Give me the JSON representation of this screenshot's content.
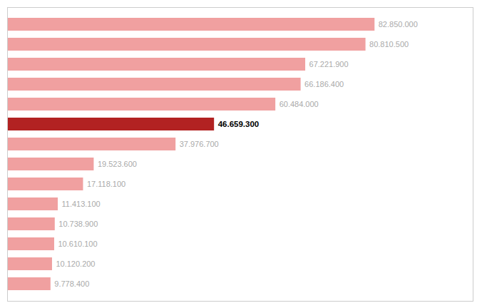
{
  "chart_data": {
    "type": "bar",
    "orientation": "horizontal",
    "categories": [
      null,
      null,
      null,
      null,
      null,
      null,
      null,
      null,
      null,
      null,
      null,
      null,
      null,
      null
    ],
    "values": [
      82850000,
      80810500,
      67221900,
      66186400,
      60484000,
      46659300,
      37976700,
      19523600,
      17118100,
      11413100,
      10738900,
      10610100,
      10120200,
      9778400
    ],
    "value_labels": [
      "82.850.000",
      "80.810.500",
      "67.221.900",
      "66.186.400",
      "60.484.000",
      "46.659.300",
      "37.976.700",
      "19.523.600",
      "17.118.100",
      "11.413.100",
      "10.738.900",
      "10.610.100",
      "10.120.200",
      "9.778.400"
    ],
    "colors": [
      "#f0a0a0",
      "#f0a0a0",
      "#f0a0a0",
      "#f0a0a0",
      "#f0a0a0",
      "#b22222",
      "#f0a0a0",
      "#f0a0a0",
      "#f0a0a0",
      "#f0a0a0",
      "#f0a0a0",
      "#f0a0a0",
      "#f0a0a0",
      "#f0a0a0"
    ],
    "xlim": [
      0,
      105000000
    ],
    "data_labels": true,
    "tick_labels": false,
    "grid": false
  }
}
